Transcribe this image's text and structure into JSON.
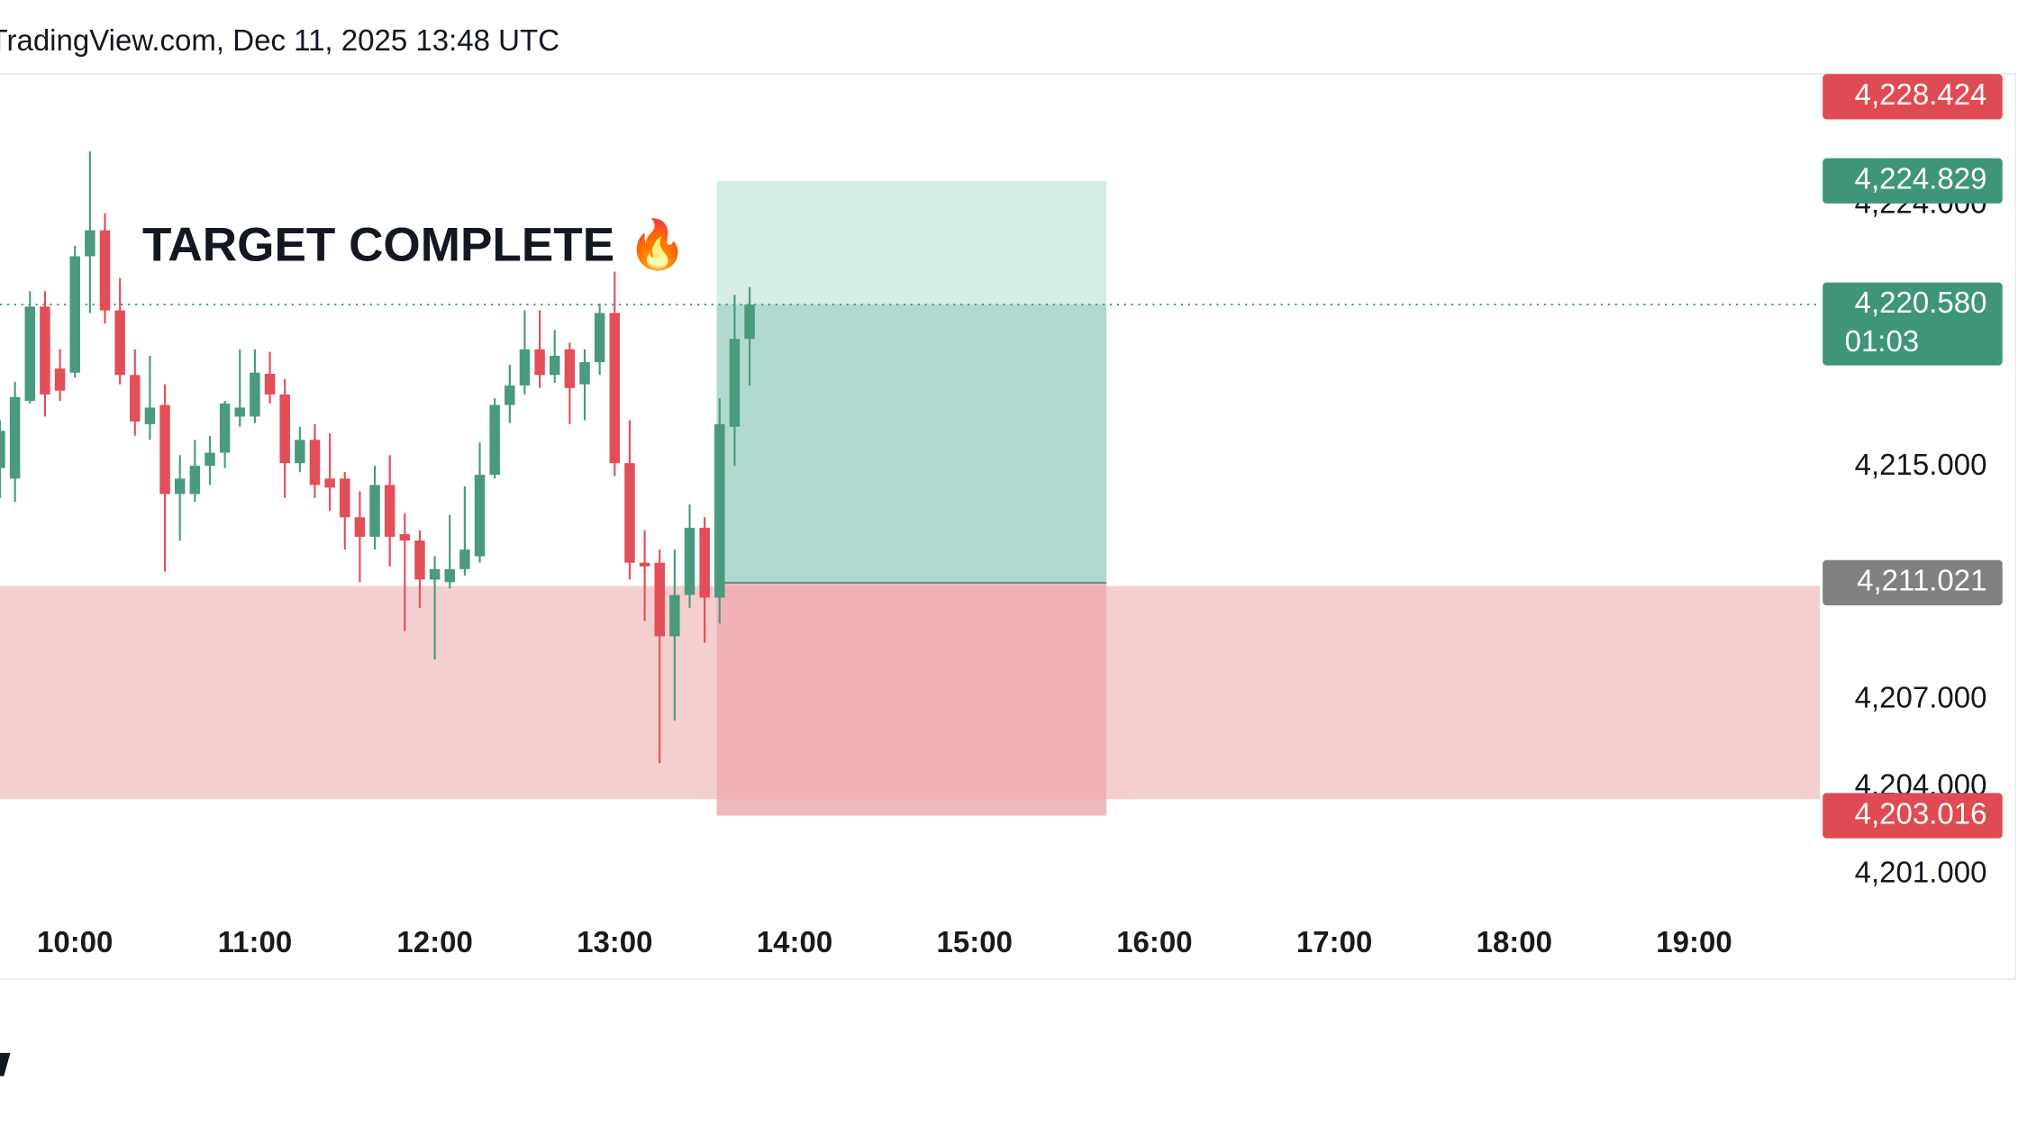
{
  "header": {
    "source": "TradingView.com, Dec 11, 2025 13:48 UTC"
  },
  "chart_data": {
    "type": "candlestick",
    "annotation": "TARGET COMPLETE 🔥",
    "up_color": "#4a9a7e",
    "down_color": "#e24f58",
    "x": [
      575,
      580,
      585,
      590,
      595,
      600,
      605,
      610,
      615,
      620,
      625,
      630,
      635,
      640,
      645,
      650,
      655,
      660,
      665,
      670,
      675,
      680,
      685,
      690,
      695,
      700,
      705,
      710,
      715,
      720,
      725,
      730,
      735,
      740,
      745,
      750,
      755,
      760,
      765,
      770,
      775,
      780,
      785,
      790,
      795,
      800,
      805,
      810,
      815,
      820,
      825
    ],
    "open": [
      4214.96,
      4214.6,
      4217.27,
      4220.51,
      4218.38,
      4218.24,
      4222.24,
      4223.13,
      4220.38,
      4218.16,
      4216.47,
      4217.13,
      4214.07,
      4214.07,
      4215.04,
      4215.49,
      4216.73,
      4216.73,
      4218.2,
      4217.49,
      4215.13,
      4215.93,
      4214.6,
      4214.6,
      4213.27,
      4212.6,
      4214.38,
      4212.69,
      4212.47,
      4211.13,
      4211.04,
      4211.49,
      4211.93,
      4214.73,
      4217.13,
      4217.8,
      4219.04,
      4218.16,
      4219.04,
      4217.84,
      4218.6,
      4220.29,
      4215.13,
      4211.71,
      4211.71,
      4209.18,
      4210.6,
      4212.91,
      4210.51,
      4216.38,
      4219.4
    ],
    "high": [
      4216.6,
      4217.93,
      4221.04,
      4221.04,
      4219.04,
      4222.6,
      4225.84,
      4223.71,
      4221.49,
      4219.04,
      4218.82,
      4217.84,
      4215.4,
      4215.93,
      4216.07,
      4217.27,
      4219.04,
      4219.04,
      4218.96,
      4218.02,
      4216.38,
      4216.47,
      4216.16,
      4214.82,
      4214.16,
      4215.04,
      4215.4,
      4213.4,
      4212.82,
      4211.93,
      4213.36,
      4214.33,
      4215.84,
      4217.36,
      4218.51,
      4220.38,
      4220.38,
      4219.71,
      4219.27,
      4219.04,
      4220.6,
      4221.71,
      4216.6,
      4212.82,
      4212.16,
      4212.16,
      4213.71,
      4213.27,
      4217.36,
      4220.91,
      4221.18
    ],
    "low": [
      4213.93,
      4213.8,
      4217.18,
      4216.73,
      4217.27,
      4218.07,
      4220.29,
      4219.93,
      4217.84,
      4216.07,
      4215.93,
      4211.4,
      4212.47,
      4213.8,
      4214.38,
      4214.96,
      4216.38,
      4216.51,
      4217.18,
      4213.93,
      4214.82,
      4213.93,
      4213.49,
      4212.16,
      4211.04,
      4212.16,
      4211.58,
      4209.36,
      4210.16,
      4208.38,
      4210.82,
      4211.27,
      4211.71,
      4214.6,
      4216.51,
      4217.49,
      4217.71,
      4217.89,
      4216.47,
      4216.6,
      4218.16,
      4214.69,
      4211.13,
      4209.71,
      4204.82,
      4206.29,
      4210.16,
      4208.96,
      4209.62,
      4215.04,
      4217.8
    ],
    "close": [
      4216.24,
      4217.4,
      4220.51,
      4217.49,
      4217.62,
      4222.24,
      4223.13,
      4220.38,
      4218.16,
      4216.56,
      4217.04,
      4214.07,
      4214.6,
      4215.04,
      4215.49,
      4217.18,
      4217.04,
      4218.24,
      4217.49,
      4215.13,
      4215.93,
      4214.38,
      4214.29,
      4213.27,
      4212.6,
      4214.38,
      4212.6,
      4212.47,
      4211.13,
      4211.49,
      4211.49,
      4212.16,
      4214.73,
      4217.13,
      4217.8,
      4219.04,
      4218.16,
      4218.82,
      4217.71,
      4218.6,
      4220.29,
      4215.13,
      4211.71,
      4211.58,
      4209.18,
      4210.6,
      4212.91,
      4210.51,
      4216.47,
      4219.4,
      4220.58
    ],
    "xlim": [
      575,
      1182
    ],
    "xticks": [
      {
        "value": 600,
        "label": "10:00"
      },
      {
        "value": 660,
        "label": "11:00"
      },
      {
        "value": 720,
        "label": "12:00"
      },
      {
        "value": 780,
        "label": "13:00"
      },
      {
        "value": 840,
        "label": "14:00"
      },
      {
        "value": 900,
        "label": "15:00"
      },
      {
        "value": 960,
        "label": "16:00"
      },
      {
        "value": 1020,
        "label": "17:00"
      },
      {
        "value": 1080,
        "label": "18:00"
      },
      {
        "value": 1140,
        "label": "19:00"
      }
    ],
    "ylim": [
      4200,
      4228.5
    ],
    "yticks": [
      {
        "value": 4201,
        "label": "4,201.000"
      },
      {
        "value": 4204,
        "label": "4,204.000"
      },
      {
        "value": 4207,
        "label": "4,207.000"
      },
      {
        "value": 4215,
        "label": "4,215.000"
      },
      {
        "value": 4224,
        "label": "4,224.000"
      }
    ],
    "zone": {
      "low": 4203.58,
      "high": 4210.91,
      "color": "#f5cfd0"
    },
    "position": {
      "start": 814,
      "end": 944,
      "entry": 4211.021,
      "target": 4224.829,
      "stop": 4203.016,
      "target_color": "#d3ebe5",
      "stop_color": "#efadb1"
    },
    "price_labels": [
      {
        "value": 4228.424,
        "label": "4,228.424",
        "color": "#e04a52"
      },
      {
        "value": 4224.829,
        "label": "4,224.829",
        "color": "#3f957a"
      },
      {
        "value": 4220.58,
        "label": "4,220.580",
        "countdown": "01:03",
        "color": "#3f957a"
      },
      {
        "value": 4211.021,
        "label": "4,211.021",
        "color": "#808080"
      },
      {
        "value": 4203.016,
        "label": "4,203.016",
        "color": "#e04a52"
      }
    ]
  }
}
